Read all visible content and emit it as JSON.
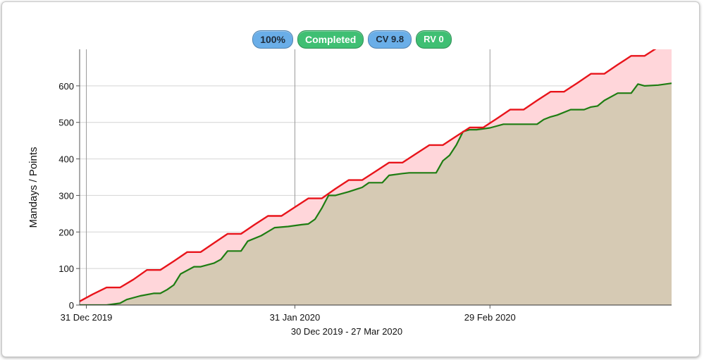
{
  "badges": {
    "percent": "100%",
    "status": "Completed",
    "cv": "CV 9.8",
    "rv": "RV 0"
  },
  "colors": {
    "badge_blue": "#6aaee8",
    "badge_green": "#3fbf73",
    "plan_line": "#e8141b",
    "plan_fill": "#ffd6da",
    "actual_line": "#1e7d12",
    "actual_fill": "#d6cab4",
    "actual_ahead_fill": "#dcebd4"
  },
  "chart_data": {
    "type": "line",
    "title": "",
    "xlabel": "30 Dec 2019 - 27 Mar 2020",
    "ylabel": "Mandays / Points",
    "ylim": [
      0,
      700
    ],
    "yticks": [
      0,
      100,
      200,
      300,
      400,
      500,
      600
    ],
    "xlim": [
      "2019-12-30",
      "2020-03-27"
    ],
    "xticks": [
      {
        "date": "2019-12-31",
        "label": "31 Dec 2019"
      },
      {
        "date": "2020-01-31",
        "label": "31 Jan 2020"
      },
      {
        "date": "2020-02-29",
        "label": "29 Feb 2020"
      }
    ],
    "grid": true,
    "series": [
      {
        "key": "plan",
        "x": [
          "2019-12-30",
          "2020-01-01",
          "2020-01-03",
          "2020-01-05",
          "2020-01-07",
          "2020-01-09",
          "2020-01-11",
          "2020-01-13",
          "2020-01-15",
          "2020-01-17",
          "2020-01-19",
          "2020-01-21",
          "2020-01-23",
          "2020-01-25",
          "2020-01-27",
          "2020-01-29",
          "2020-01-31",
          "2020-02-02",
          "2020-02-04",
          "2020-02-06",
          "2020-02-08",
          "2020-02-10",
          "2020-02-12",
          "2020-02-14",
          "2020-02-16",
          "2020-02-18",
          "2020-02-20",
          "2020-02-22",
          "2020-02-24",
          "2020-02-26",
          "2020-02-28",
          "2020-03-01",
          "2020-03-03",
          "2020-03-05",
          "2020-03-07",
          "2020-03-09",
          "2020-03-11",
          "2020-03-13",
          "2020-03-15",
          "2020-03-17",
          "2020-03-19",
          "2020-03-21",
          "2020-03-23",
          "2020-03-25",
          "2020-03-27"
        ],
        "values": [
          10,
          30,
          48,
          48,
          70,
          96,
          96,
          120,
          145,
          145,
          170,
          195,
          195,
          220,
          244,
          244,
          268,
          292,
          292,
          318,
          342,
          342,
          366,
          390,
          390,
          414,
          438,
          438,
          462,
          486,
          486,
          510,
          535,
          535,
          560,
          584,
          584,
          608,
          633,
          633,
          658,
          682,
          682,
          706,
          730
        ]
      },
      {
        "key": "actual",
        "x": [
          "2019-12-30",
          "2020-01-03",
          "2020-01-05",
          "2020-01-06",
          "2020-01-08",
          "2020-01-10",
          "2020-01-11",
          "2020-01-12",
          "2020-01-13",
          "2020-01-14",
          "2020-01-16",
          "2020-01-17",
          "2020-01-19",
          "2020-01-20",
          "2020-01-21",
          "2020-01-23",
          "2020-01-24",
          "2020-01-26",
          "2020-01-28",
          "2020-01-30",
          "2020-02-01",
          "2020-02-02",
          "2020-02-03",
          "2020-02-04",
          "2020-02-05",
          "2020-02-06",
          "2020-02-08",
          "2020-02-10",
          "2020-02-11",
          "2020-02-13",
          "2020-02-14",
          "2020-02-16",
          "2020-02-17",
          "2020-02-19",
          "2020-02-21",
          "2020-02-22",
          "2020-02-23",
          "2020-02-24",
          "2020-02-25",
          "2020-02-26",
          "2020-02-27",
          "2020-02-29",
          "2020-03-02",
          "2020-03-03",
          "2020-03-05",
          "2020-03-07",
          "2020-03-08",
          "2020-03-09",
          "2020-03-10",
          "2020-03-12",
          "2020-03-14",
          "2020-03-15",
          "2020-03-16",
          "2020-03-17",
          "2020-03-19",
          "2020-03-21",
          "2020-03-22",
          "2020-03-23",
          "2020-03-25",
          "2020-03-27"
        ],
        "values": [
          0,
          0,
          5,
          15,
          25,
          32,
          32,
          42,
          55,
          85,
          105,
          105,
          115,
          125,
          148,
          148,
          175,
          190,
          212,
          215,
          220,
          222,
          235,
          265,
          300,
          300,
          310,
          322,
          335,
          335,
          355,
          360,
          362,
          362,
          362,
          395,
          410,
          438,
          475,
          480,
          480,
          485,
          495,
          495,
          495,
          495,
          508,
          515,
          520,
          535,
          535,
          542,
          545,
          560,
          580,
          580,
          605,
          600,
          602,
          607
        ]
      }
    ]
  }
}
